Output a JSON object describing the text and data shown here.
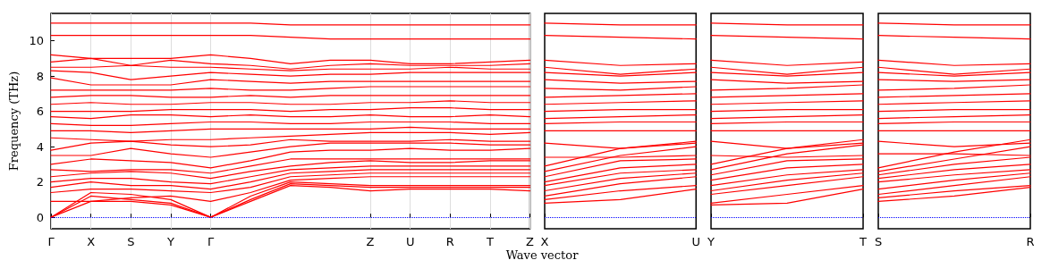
{
  "chart_data": [
    {
      "type": "line",
      "xlabel": "Wave vector",
      "ylabel": "Frequency (THz)",
      "grid": "x",
      "ylim": [
        -0.65,
        11.55
      ],
      "yticks": [
        0,
        2,
        4,
        6,
        8,
        10
      ],
      "categories": [
        "Γ",
        "X",
        "S",
        "Y",
        "Γ",
        null,
        null,
        null,
        "Z",
        "U",
        "R",
        "T",
        "Z"
      ],
      "ref_lines": [
        {
          "axis": "y",
          "value": 0,
          "color": "#0000ff",
          "line_style": "dotted"
        }
      ],
      "series": [
        {
          "color": "#ff0000",
          "values": [
            0,
            0.9,
            0.9,
            0.7,
            0,
            0.9,
            1.8,
            1.7,
            1.5,
            1.6,
            1.6,
            1.6,
            1.5
          ]
        },
        {
          "color": "#ff0000",
          "values": [
            0,
            1.2,
            1.0,
            0.8,
            0,
            1.0,
            1.9,
            1.8,
            1.7,
            1.7,
            1.7,
            1.7,
            1.7
          ]
        },
        {
          "color": "#ff0000",
          "values": [
            0,
            1.4,
            1.3,
            1.0,
            0,
            1.2,
            2.0,
            1.9,
            1.8,
            1.8,
            1.8,
            1.8,
            1.8
          ]
        },
        {
          "color": "#ff0000",
          "values": [
            0.9,
            0.9,
            1.1,
            1.2,
            0.9,
            1.4,
            2.1,
            2.2,
            2.3,
            2.3,
            2.3,
            2.3,
            2.3
          ]
        },
        {
          "color": "#ff0000",
          "values": [
            1.4,
            1.6,
            1.6,
            1.5,
            1.4,
            1.7,
            2.3,
            2.4,
            2.5,
            2.5,
            2.5,
            2.5,
            2.5
          ]
        },
        {
          "color": "#ff0000",
          "values": [
            1.7,
            2.0,
            1.8,
            1.8,
            1.6,
            2.0,
            2.5,
            2.6,
            2.7,
            2.7,
            2.7,
            2.7,
            2.7
          ]
        },
        {
          "color": "#ff0000",
          "values": [
            2.0,
            2.2,
            2.2,
            2.0,
            1.9,
            2.3,
            2.7,
            2.8,
            2.9,
            2.9,
            2.9,
            2.9,
            2.9
          ]
        },
        {
          "color": "#ff0000",
          "values": [
            2.3,
            2.5,
            2.6,
            2.5,
            2.2,
            2.6,
            2.9,
            3.1,
            3.2,
            3.1,
            3.1,
            3.2,
            3.2
          ]
        },
        {
          "color": "#ff0000",
          "values": [
            2.7,
            2.6,
            2.7,
            2.7,
            2.5,
            2.9,
            3.3,
            3.3,
            3.3,
            3.3,
            3.3,
            3.3,
            3.3
          ]
        },
        {
          "color": "#ff0000",
          "values": [
            3.0,
            3.3,
            3.2,
            3.1,
            2.8,
            3.2,
            3.7,
            3.8,
            3.8,
            3.9,
            3.8,
            3.8,
            3.9
          ]
        },
        {
          "color": "#ff0000",
          "values": [
            3.5,
            3.5,
            3.9,
            3.6,
            3.4,
            3.7,
            4.0,
            4.2,
            4.2,
            4.2,
            4.2,
            4.1,
            4.1
          ]
        },
        {
          "color": "#ff0000",
          "values": [
            3.8,
            4.2,
            4.3,
            4.1,
            4.0,
            4.1,
            4.4,
            4.3,
            4.3,
            4.3,
            4.4,
            4.3,
            4.3
          ]
        },
        {
          "color": "#ff0000",
          "values": [
            4.5,
            4.4,
            4.3,
            4.4,
            4.4,
            4.5,
            4.6,
            4.7,
            4.8,
            4.8,
            4.8,
            4.7,
            4.8
          ]
        },
        {
          "color": "#ff0000",
          "values": [
            4.9,
            4.9,
            4.8,
            4.9,
            5.0,
            5.0,
            5.0,
            5.0,
            5.0,
            5.1,
            5.0,
            5.0,
            5.0
          ]
        },
        {
          "color": "#ff0000",
          "values": [
            5.3,
            5.2,
            5.2,
            5.3,
            5.4,
            5.4,
            5.3,
            5.3,
            5.4,
            5.4,
            5.4,
            5.3,
            5.3
          ]
        },
        {
          "color": "#ff0000",
          "values": [
            5.7,
            5.6,
            5.8,
            5.8,
            5.7,
            5.8,
            5.7,
            5.7,
            5.8,
            5.7,
            5.7,
            5.8,
            5.7
          ]
        },
        {
          "color": "#ff0000",
          "values": [
            6.0,
            6.0,
            6.0,
            6.1,
            6.1,
            6.1,
            6.0,
            6.1,
            6.1,
            6.2,
            6.2,
            6.1,
            6.1
          ]
        },
        {
          "color": "#ff0000",
          "values": [
            6.4,
            6.5,
            6.4,
            6.4,
            6.5,
            6.5,
            6.4,
            6.4,
            6.5,
            6.5,
            6.6,
            6.5,
            6.5
          ]
        },
        {
          "color": "#ff0000",
          "values": [
            6.8,
            6.9,
            6.9,
            6.8,
            6.8,
            6.9,
            6.8,
            6.9,
            6.9,
            6.9,
            6.9,
            6.9,
            6.9
          ]
        },
        {
          "color": "#ff0000",
          "values": [
            7.2,
            7.2,
            7.2,
            7.2,
            7.3,
            7.2,
            7.2,
            7.3,
            7.4,
            7.4,
            7.4,
            7.4,
            7.4
          ]
        },
        {
          "color": "#ff0000",
          "values": [
            7.9,
            7.5,
            7.5,
            7.5,
            7.8,
            7.7,
            7.6,
            7.7,
            7.7,
            7.7,
            7.7,
            7.7,
            7.7
          ]
        },
        {
          "color": "#ff0000",
          "values": [
            8.3,
            8.2,
            7.8,
            8.0,
            8.2,
            8.1,
            8.0,
            8.1,
            8.1,
            8.2,
            8.2,
            8.2,
            8.2
          ]
        },
        {
          "color": "#ff0000",
          "values": [
            8.5,
            8.5,
            8.6,
            8.5,
            8.5,
            8.4,
            8.3,
            8.4,
            8.4,
            8.4,
            8.5,
            8.4,
            8.4
          ]
        },
        {
          "color": "#ff0000",
          "values": [
            8.8,
            9.0,
            8.6,
            8.9,
            8.7,
            8.6,
            8.4,
            8.6,
            8.7,
            8.6,
            8.6,
            8.6,
            8.7
          ]
        },
        {
          "color": "#ff0000",
          "values": [
            9.2,
            9.0,
            9.0,
            9.0,
            9.2,
            9.0,
            8.7,
            8.9,
            8.9,
            8.7,
            8.7,
            8.8,
            8.9
          ]
        },
        {
          "color": "#ff0000",
          "values": [
            10.3,
            10.3,
            10.3,
            10.3,
            10.3,
            10.3,
            10.2,
            10.1,
            10.1,
            10.1,
            10.1,
            10.1,
            10.1
          ]
        },
        {
          "color": "#ff0000",
          "values": [
            11.0,
            11.0,
            11.0,
            11.0,
            11.0,
            11.0,
            10.9,
            10.9,
            10.9,
            10.9,
            10.9,
            10.9,
            10.9
          ]
        }
      ]
    },
    {
      "type": "line",
      "tick_labels": "x",
      "ylim": [
        -0.65,
        11.55
      ],
      "categories": [
        "X",
        null,
        "U"
      ],
      "ref_lines": [
        {
          "axis": "y",
          "value": 0,
          "color": "#0000ff",
          "line_style": "dotted"
        }
      ],
      "series": [
        {
          "color": "#ff0000",
          "values": [
            0.8,
            1.0,
            1.6
          ]
        },
        {
          "color": "#ff0000",
          "values": [
            1.0,
            1.5,
            1.8
          ]
        },
        {
          "color": "#ff0000",
          "values": [
            1.2,
            1.9,
            2.3
          ]
        },
        {
          "color": "#ff0000",
          "values": [
            1.5,
            2.2,
            2.5
          ]
        },
        {
          "color": "#ff0000",
          "values": [
            1.8,
            2.5,
            2.7
          ]
        },
        {
          "color": "#ff0000",
          "values": [
            2.0,
            2.8,
            3.0
          ]
        },
        {
          "color": "#ff0000",
          "values": [
            2.3,
            3.2,
            3.3
          ]
        },
        {
          "color": "#ff0000",
          "values": [
            2.6,
            3.5,
            4.0
          ]
        },
        {
          "color": "#ff0000",
          "values": [
            2.9,
            3.9,
            4.3
          ]
        },
        {
          "color": "#ff0000",
          "values": [
            3.4,
            3.4,
            3.5
          ]
        },
        {
          "color": "#ff0000",
          "values": [
            4.2,
            3.9,
            4.2
          ]
        },
        {
          "color": "#ff0000",
          "values": [
            4.9,
            4.9,
            4.9
          ]
        },
        {
          "color": "#ff0000",
          "values": [
            5.3,
            5.4,
            5.4
          ]
        },
        {
          "color": "#ff0000",
          "values": [
            5.6,
            5.7,
            5.8
          ]
        },
        {
          "color": "#ff0000",
          "values": [
            6.0,
            6.1,
            6.1
          ]
        },
        {
          "color": "#ff0000",
          "values": [
            6.4,
            6.5,
            6.6
          ]
        },
        {
          "color": "#ff0000",
          "values": [
            6.8,
            6.9,
            7.0
          ]
        },
        {
          "color": "#ff0000",
          "values": [
            7.3,
            7.2,
            7.4
          ]
        },
        {
          "color": "#ff0000",
          "values": [
            7.8,
            7.6,
            7.7
          ]
        },
        {
          "color": "#ff0000",
          "values": [
            8.2,
            8.0,
            8.2
          ]
        },
        {
          "color": "#ff0000",
          "values": [
            8.5,
            8.1,
            8.4
          ]
        },
        {
          "color": "#ff0000",
          "values": [
            8.9,
            8.6,
            8.7
          ]
        },
        {
          "color": "#ff0000",
          "values": [
            10.3,
            10.2,
            10.1
          ]
        },
        {
          "color": "#ff0000",
          "values": [
            11.0,
            10.9,
            10.9
          ]
        }
      ]
    },
    {
      "type": "line",
      "tick_labels": "x",
      "ylim": [
        -0.65,
        11.55
      ],
      "categories": [
        "Y",
        null,
        "T"
      ],
      "ref_lines": [
        {
          "axis": "y",
          "value": 0,
          "color": "#0000ff",
          "line_style": "dotted"
        }
      ],
      "series": [
        {
          "color": "#ff0000",
          "values": [
            0.7,
            0.8,
            1.6
          ]
        },
        {
          "color": "#ff0000",
          "values": [
            0.8,
            1.3,
            1.8
          ]
        },
        {
          "color": "#ff0000",
          "values": [
            1.3,
            1.8,
            2.3
          ]
        },
        {
          "color": "#ff0000",
          "values": [
            1.5,
            2.1,
            2.5
          ]
        },
        {
          "color": "#ff0000",
          "values": [
            1.8,
            2.4,
            2.7
          ]
        },
        {
          "color": "#ff0000",
          "values": [
            2.1,
            2.8,
            3.0
          ]
        },
        {
          "color": "#ff0000",
          "values": [
            2.4,
            3.2,
            3.3
          ]
        },
        {
          "color": "#ff0000",
          "values": [
            2.7,
            3.6,
            4.1
          ]
        },
        {
          "color": "#ff0000",
          "values": [
            3.0,
            3.9,
            4.4
          ]
        },
        {
          "color": "#ff0000",
          "values": [
            3.5,
            3.4,
            3.5
          ]
        },
        {
          "color": "#ff0000",
          "values": [
            4.3,
            3.9,
            4.2
          ]
        },
        {
          "color": "#ff0000",
          "values": [
            4.9,
            4.9,
            4.9
          ]
        },
        {
          "color": "#ff0000",
          "values": [
            5.3,
            5.4,
            5.4
          ]
        },
        {
          "color": "#ff0000",
          "values": [
            5.6,
            5.7,
            5.8
          ]
        },
        {
          "color": "#ff0000",
          "values": [
            6.0,
            6.1,
            6.1
          ]
        },
        {
          "color": "#ff0000",
          "values": [
            6.4,
            6.5,
            6.6
          ]
        },
        {
          "color": "#ff0000",
          "values": [
            6.8,
            6.9,
            7.0
          ]
        },
        {
          "color": "#ff0000",
          "values": [
            7.2,
            7.3,
            7.5
          ]
        },
        {
          "color": "#ff0000",
          "values": [
            7.8,
            7.6,
            7.7
          ]
        },
        {
          "color": "#ff0000",
          "values": [
            8.2,
            8.0,
            8.2
          ]
        },
        {
          "color": "#ff0000",
          "values": [
            8.5,
            8.1,
            8.5
          ]
        },
        {
          "color": "#ff0000",
          "values": [
            8.9,
            8.6,
            8.8
          ]
        },
        {
          "color": "#ff0000",
          "values": [
            10.3,
            10.2,
            10.1
          ]
        },
        {
          "color": "#ff0000",
          "values": [
            11.0,
            10.9,
            10.9
          ]
        }
      ]
    },
    {
      "type": "line",
      "tick_labels": "x",
      "ylim": [
        -0.65,
        11.55
      ],
      "categories": [
        "S",
        null,
        "R"
      ],
      "ref_lines": [
        {
          "axis": "y",
          "value": 0,
          "color": "#0000ff",
          "line_style": "dotted"
        }
      ],
      "series": [
        {
          "color": "#ff0000",
          "values": [
            0.9,
            1.2,
            1.7
          ]
        },
        {
          "color": "#ff0000",
          "values": [
            1.1,
            1.5,
            1.8
          ]
        },
        {
          "color": "#ff0000",
          "values": [
            1.3,
            1.8,
            2.3
          ]
        },
        {
          "color": "#ff0000",
          "values": [
            1.6,
            2.1,
            2.5
          ]
        },
        {
          "color": "#ff0000",
          "values": [
            2.0,
            2.4,
            2.7
          ]
        },
        {
          "color": "#ff0000",
          "values": [
            2.2,
            2.7,
            3.0
          ]
        },
        {
          "color": "#ff0000",
          "values": [
            2.4,
            3.0,
            3.4
          ]
        },
        {
          "color": "#ff0000",
          "values": [
            2.6,
            3.3,
            4.0
          ]
        },
        {
          "color": "#ff0000",
          "values": [
            2.8,
            3.7,
            4.4
          ]
        },
        {
          "color": "#ff0000",
          "values": [
            3.6,
            3.6,
            3.5
          ]
        },
        {
          "color": "#ff0000",
          "values": [
            4.3,
            4.0,
            4.2
          ]
        },
        {
          "color": "#ff0000",
          "values": [
            4.9,
            4.9,
            4.9
          ]
        },
        {
          "color": "#ff0000",
          "values": [
            5.3,
            5.4,
            5.4
          ]
        },
        {
          "color": "#ff0000",
          "values": [
            5.6,
            5.7,
            5.8
          ]
        },
        {
          "color": "#ff0000",
          "values": [
            6.0,
            6.1,
            6.1
          ]
        },
        {
          "color": "#ff0000",
          "values": [
            6.4,
            6.5,
            6.6
          ]
        },
        {
          "color": "#ff0000",
          "values": [
            6.8,
            6.9,
            7.0
          ]
        },
        {
          "color": "#ff0000",
          "values": [
            7.2,
            7.3,
            7.5
          ]
        },
        {
          "color": "#ff0000",
          "values": [
            7.8,
            7.7,
            7.8
          ]
        },
        {
          "color": "#ff0000",
          "values": [
            8.2,
            8.0,
            8.2
          ]
        },
        {
          "color": "#ff0000",
          "values": [
            8.5,
            8.1,
            8.4
          ]
        },
        {
          "color": "#ff0000",
          "values": [
            8.9,
            8.6,
            8.7
          ]
        },
        {
          "color": "#ff0000",
          "values": [
            10.3,
            10.2,
            10.1
          ]
        },
        {
          "color": "#ff0000",
          "values": [
            11.0,
            10.9,
            10.9
          ]
        }
      ]
    }
  ]
}
